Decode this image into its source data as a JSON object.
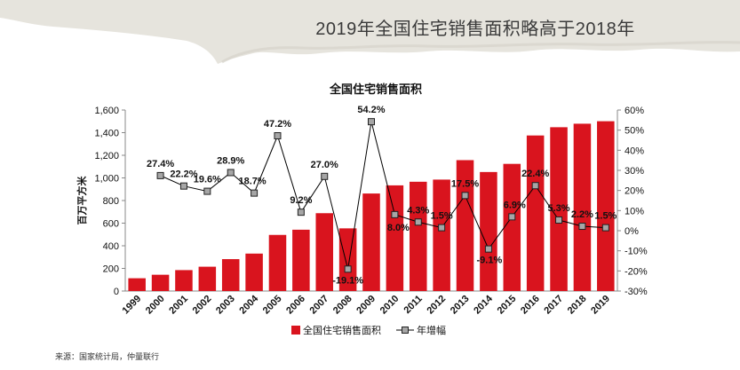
{
  "header": {
    "title": "2019年全国住宅销售面积略高于2018年"
  },
  "source": "来源：国家统计局，仲量联行",
  "chart_data": {
    "type": "bar+line",
    "title": "全国住宅销售面积",
    "ylabel": "百万平方米",
    "y2label": "",
    "ylim": [
      0,
      1600
    ],
    "y_ticks": [
      "0",
      "200",
      "400",
      "600",
      "800",
      "1,000",
      "1,200",
      "1,400",
      "1,600"
    ],
    "y2lim": [
      -30,
      60
    ],
    "y2_ticks": [
      "-30%",
      "-20%",
      "-10%",
      "0%",
      "10%",
      "20%",
      "30%",
      "40%",
      "50%",
      "60%"
    ],
    "categories": [
      "1999",
      "2000",
      "2001",
      "2002",
      "2003",
      "2004",
      "2005",
      "2006",
      "2007",
      "2008",
      "2009",
      "2010",
      "2011",
      "2012",
      "2013",
      "2014",
      "2015",
      "2016",
      "2017",
      "2018",
      "2019"
    ],
    "series": [
      {
        "name": "全国住宅销售面积",
        "type": "bar",
        "axis": "left",
        "color": "#d9141e",
        "values": [
          113,
          144,
          185,
          215,
          282,
          331,
          496,
          542,
          688,
          554,
          862,
          934,
          966,
          985,
          1157,
          1052,
          1124,
          1375,
          1448,
          1479,
          1501
        ]
      },
      {
        "name": "年增幅",
        "type": "line",
        "axis": "right",
        "color": "#000000",
        "marker": "square",
        "marker_color": "#a6a6a6",
        "values": [
          null,
          27.4,
          22.2,
          19.6,
          28.9,
          18.7,
          47.2,
          9.2,
          27.0,
          -19.1,
          54.2,
          8.0,
          4.3,
          1.5,
          17.5,
          -9.1,
          6.9,
          22.4,
          5.3,
          2.2,
          1.5
        ],
        "labels": [
          null,
          "27.4%",
          "22.2%",
          "19.6%",
          "28.9%",
          "18.7%",
          "47.2%",
          "9.2%",
          "27.0%",
          "-19.1%",
          "54.2%",
          "8.0%",
          "4.3%",
          "1.5%",
          "17.5%",
          "-9.1%",
          "6.9%",
          "22.4%",
          "5.3%",
          "2.2%",
          "1.5%"
        ]
      }
    ],
    "legend": "bottom",
    "grid": false
  }
}
